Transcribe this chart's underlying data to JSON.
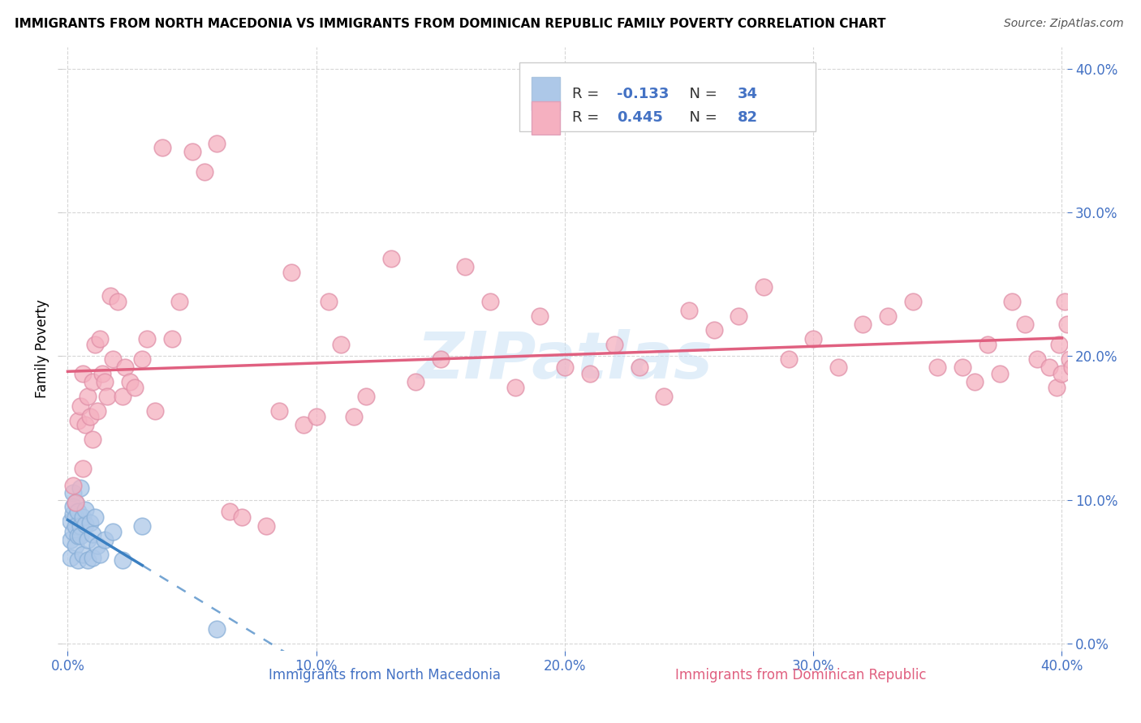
{
  "title": "IMMIGRANTS FROM NORTH MACEDONIA VS IMMIGRANTS FROM DOMINICAN REPUBLIC FAMILY POVERTY CORRELATION CHART",
  "source": "Source: ZipAtlas.com",
  "ylabel": "Family Poverty",
  "ytick_values": [
    0.0,
    0.1,
    0.2,
    0.3,
    0.4
  ],
  "xtick_values": [
    0.0,
    0.1,
    0.2,
    0.3,
    0.4
  ],
  "xlim": [
    -0.002,
    0.402
  ],
  "ylim": [
    -0.005,
    0.415
  ],
  "blue_color": "#adc8e8",
  "pink_color": "#f5b0c0",
  "blue_line_color": "#3a7fc1",
  "pink_line_color": "#e06080",
  "watermark": "ZIPatlas",
  "legend_R1": "-0.133",
  "legend_N1": "34",
  "legend_R2": "0.445",
  "legend_N2": "82",
  "label_blue": "Immigrants from North Macedonia",
  "label_pink": "Immigrants from Dominican Republic",
  "blue_r": -0.133,
  "pink_r": 0.445,
  "scatter_blue_x": [
    0.001,
    0.001,
    0.001,
    0.002,
    0.002,
    0.002,
    0.002,
    0.003,
    0.003,
    0.003,
    0.003,
    0.004,
    0.004,
    0.004,
    0.005,
    0.005,
    0.005,
    0.006,
    0.006,
    0.007,
    0.007,
    0.008,
    0.008,
    0.009,
    0.01,
    0.01,
    0.011,
    0.012,
    0.013,
    0.015,
    0.018,
    0.022,
    0.03,
    0.06
  ],
  "scatter_blue_y": [
    0.072,
    0.085,
    0.06,
    0.09,
    0.105,
    0.078,
    0.095,
    0.088,
    0.098,
    0.068,
    0.082,
    0.075,
    0.058,
    0.092,
    0.082,
    0.108,
    0.075,
    0.088,
    0.062,
    0.083,
    0.093,
    0.072,
    0.058,
    0.084,
    0.076,
    0.06,
    0.088,
    0.068,
    0.062,
    0.072,
    0.078,
    0.058,
    0.082,
    0.01
  ],
  "scatter_pink_x": [
    0.002,
    0.003,
    0.004,
    0.005,
    0.006,
    0.006,
    0.007,
    0.008,
    0.009,
    0.01,
    0.01,
    0.011,
    0.012,
    0.013,
    0.014,
    0.015,
    0.016,
    0.017,
    0.018,
    0.02,
    0.022,
    0.023,
    0.025,
    0.027,
    0.03,
    0.032,
    0.035,
    0.038,
    0.042,
    0.045,
    0.05,
    0.055,
    0.06,
    0.065,
    0.07,
    0.08,
    0.085,
    0.09,
    0.095,
    0.1,
    0.105,
    0.11,
    0.115,
    0.12,
    0.13,
    0.14,
    0.15,
    0.16,
    0.17,
    0.18,
    0.19,
    0.2,
    0.21,
    0.22,
    0.23,
    0.24,
    0.25,
    0.26,
    0.27,
    0.28,
    0.29,
    0.3,
    0.31,
    0.32,
    0.33,
    0.34,
    0.35,
    0.36,
    0.365,
    0.37,
    0.375,
    0.38,
    0.385,
    0.39,
    0.395,
    0.398,
    0.399,
    0.4,
    0.401,
    0.402,
    0.403,
    0.404
  ],
  "scatter_pink_y": [
    0.11,
    0.098,
    0.155,
    0.165,
    0.122,
    0.188,
    0.152,
    0.172,
    0.158,
    0.142,
    0.182,
    0.208,
    0.162,
    0.212,
    0.188,
    0.182,
    0.172,
    0.242,
    0.198,
    0.238,
    0.172,
    0.192,
    0.182,
    0.178,
    0.198,
    0.212,
    0.162,
    0.345,
    0.212,
    0.238,
    0.342,
    0.328,
    0.348,
    0.092,
    0.088,
    0.082,
    0.162,
    0.258,
    0.152,
    0.158,
    0.238,
    0.208,
    0.158,
    0.172,
    0.268,
    0.182,
    0.198,
    0.262,
    0.238,
    0.178,
    0.228,
    0.192,
    0.188,
    0.208,
    0.192,
    0.172,
    0.232,
    0.218,
    0.228,
    0.248,
    0.198,
    0.212,
    0.192,
    0.222,
    0.228,
    0.238,
    0.192,
    0.192,
    0.182,
    0.208,
    0.188,
    0.238,
    0.222,
    0.198,
    0.192,
    0.178,
    0.208,
    0.188,
    0.238,
    0.222,
    0.198,
    0.192
  ]
}
